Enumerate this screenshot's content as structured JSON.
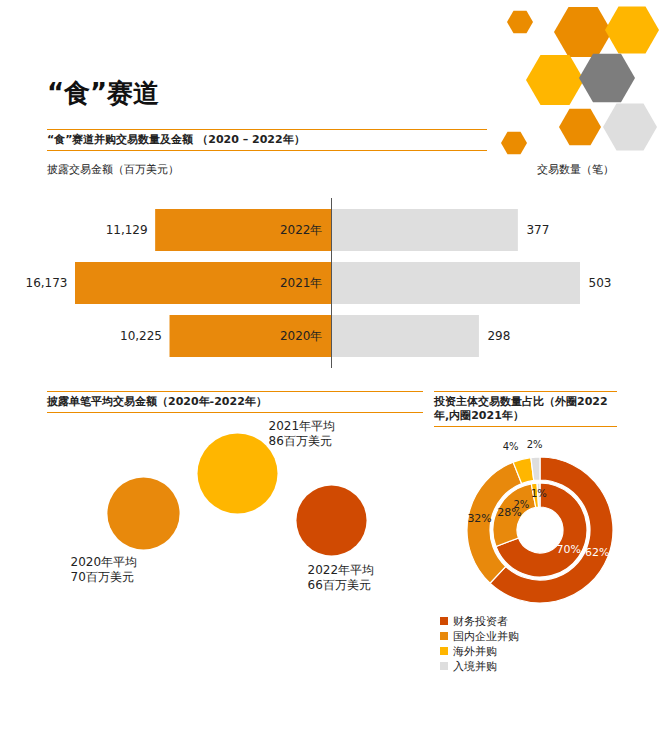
{
  "title": "“食”赛道",
  "chart_data": [
    {
      "type": "bar",
      "orientation": "horizontal",
      "title": "“食”赛道并购交易数量及金额 （2020 – 2022年）",
      "categories": [
        "2022年",
        "2021年",
        "2020年"
      ],
      "series": [
        {
          "name": "披露交易金额（百万美元）",
          "color": "#e8890c",
          "values": [
            11129,
            16173,
            10225
          ],
          "value_labels": [
            "11,129",
            "16,173",
            "10,225"
          ]
        },
        {
          "name": "交易数量（笔）",
          "color": "#dedede",
          "values": [
            377,
            503,
            298
          ]
        }
      ],
      "data_labels": true,
      "tick_labels": "y"
    },
    {
      "type": "bubble",
      "title": "披露单笔平均交易金额（2020年-2022年）",
      "categories": [
        "2020年平均",
        "2021年平均",
        "2022年平均"
      ],
      "values": [
        70,
        86,
        66
      ],
      "value_labels": [
        "70百万美元",
        "86百万美元",
        "66百万美元"
      ],
      "colors": [
        "#e8890c",
        "#ffb600",
        "#d04a02"
      ],
      "data_labels": true
    },
    {
      "type": "pie",
      "title": "投资主体交易数量占比（外圈2022年,内圈2021年）",
      "categories": [
        "财务投资者",
        "国内企业并购",
        "海外并购",
        "入境并购"
      ],
      "colors": [
        "#d04a02",
        "#e8890c",
        "#ffb600",
        "#dedede"
      ],
      "series": [
        {
          "values": [
            62,
            32,
            4,
            2
          ],
          "value_labels": [
            "62%",
            "32%",
            "4%",
            "2%"
          ]
        },
        {
          "values": [
            70,
            28,
            2,
            1
          ],
          "value_labels": [
            "70%",
            "28%",
            "2%",
            "1%"
          ]
        }
      ],
      "data_labels": true,
      "legend": "bottom"
    }
  ]
}
